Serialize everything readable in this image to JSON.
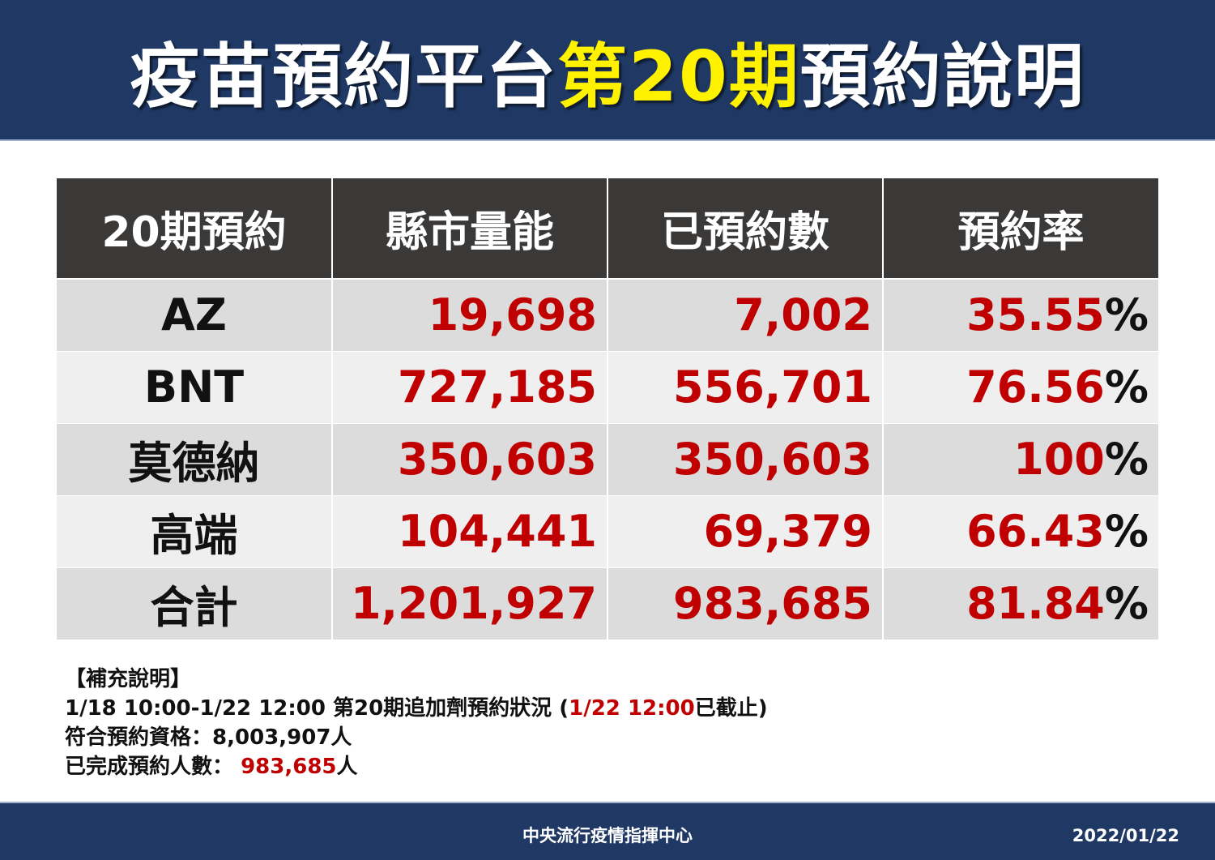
{
  "header": {
    "title_part1": "疫苗預約平台",
    "title_highlight": "第20期",
    "title_part2": "預約說明",
    "highlight_color": "#fff200"
  },
  "table": {
    "columns": [
      "20期預約",
      "縣市量能",
      "已預約數",
      "預約率"
    ],
    "rows": [
      {
        "label": "AZ",
        "capacity": "19,698",
        "booked": "7,002",
        "rate": "35.55"
      },
      {
        "label": "BNT",
        "capacity": "727,185",
        "booked": "556,701",
        "rate": "76.56"
      },
      {
        "label": "莫德納",
        "capacity": "350,603",
        "booked": "350,603",
        "rate": "100"
      },
      {
        "label": "高端",
        "capacity": "104,441",
        "booked": "69,379",
        "rate": "66.43"
      },
      {
        "label": "合計",
        "capacity": "1,201,927",
        "booked": "983,685",
        "rate": "81.84"
      }
    ],
    "percent_sign": "%"
  },
  "notes": {
    "heading": "【補充說明】",
    "period_text": "1/18 10:00-1/22  12:00 第20期追加劑預約狀況 (",
    "period_cutoff": "1/22 12:00",
    "period_suffix": "已截止)",
    "eligible_label": "符合預約資格：",
    "eligible_value": "8,003,907人",
    "completed_label": "已完成預約人數：",
    "completed_value": "983,685",
    "completed_unit": "人"
  },
  "footer": {
    "org": "中央流行疫情指揮中心",
    "date": "2022/01/22"
  },
  "colors": {
    "navy": "#1f3864",
    "red": "#c00000",
    "header_cell": "#3b3838"
  }
}
